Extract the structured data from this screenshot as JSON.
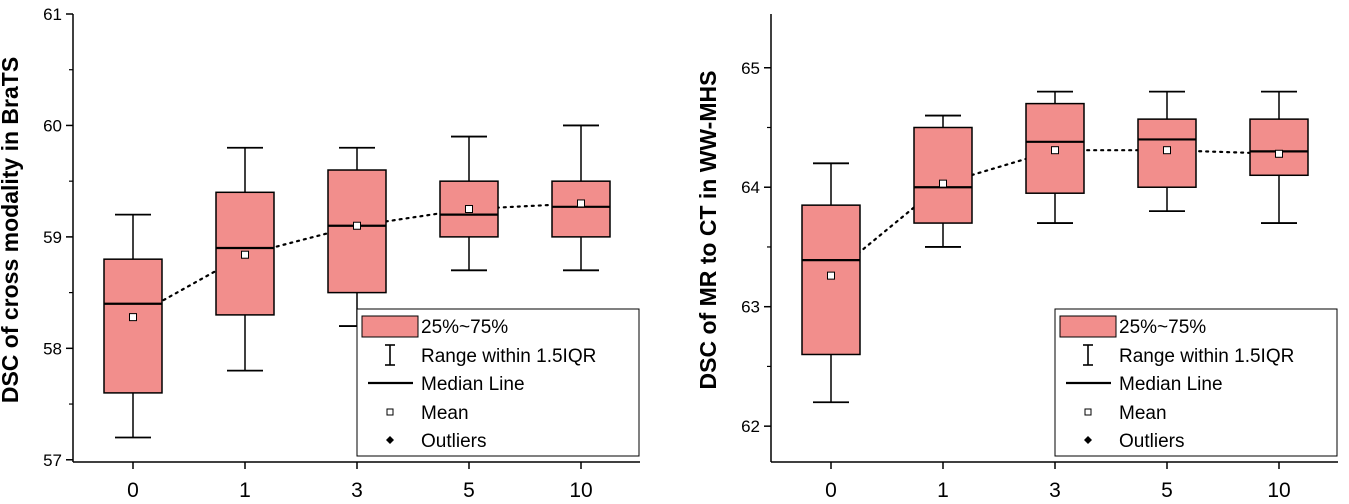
{
  "legend": {
    "box": "25%~75%",
    "whisker": "Range within 1.5IQR",
    "median": "Median Line",
    "mean": "Mean",
    "outliers": "Outliers"
  },
  "colors": {
    "box_fill": "#f28e8c",
    "stroke": "#000000"
  },
  "chart_data": [
    {
      "type": "box",
      "title": "",
      "xlabel": "",
      "ylabel": "DSC of cross modality in BraTS",
      "categories": [
        "0",
        "1",
        "3",
        "5",
        "10"
      ],
      "ylim": [
        56.98,
        61
      ],
      "yticks": [
        57,
        58,
        59,
        60,
        61
      ],
      "boxes": [
        {
          "min": 57.2,
          "q1": 57.6,
          "median": 58.4,
          "q3": 58.8,
          "max": 59.2,
          "mean": 58.28
        },
        {
          "min": 57.8,
          "q1": 58.3,
          "median": 58.9,
          "q3": 59.4,
          "max": 59.8,
          "mean": 58.84
        },
        {
          "min": 58.2,
          "q1": 58.5,
          "median": 59.1,
          "q3": 59.6,
          "max": 59.8,
          "mean": 59.1
        },
        {
          "min": 58.7,
          "q1": 59.0,
          "median": 59.2,
          "q3": 59.5,
          "max": 59.9,
          "mean": 59.25
        },
        {
          "min": 58.7,
          "q1": 59.0,
          "median": 59.27,
          "q3": 59.5,
          "max": 60.0,
          "mean": 59.3
        }
      ],
      "legend_position": "bottom-right"
    },
    {
      "type": "box",
      "title": "",
      "xlabel": "",
      "ylabel": "DSC of MR to CT in WW-MHS",
      "categories": [
        "0",
        "1",
        "3",
        "5",
        "10"
      ],
      "ylim": [
        61.7,
        65.45
      ],
      "yticks": [
        62,
        63,
        64,
        65
      ],
      "boxes": [
        {
          "min": 62.2,
          "q1": 62.6,
          "median": 63.39,
          "q3": 63.85,
          "max": 64.2,
          "mean": 63.26
        },
        {
          "min": 63.5,
          "q1": 63.7,
          "median": 64.0,
          "q3": 64.5,
          "max": 64.6,
          "mean": 64.03
        },
        {
          "min": 63.7,
          "q1": 63.95,
          "median": 64.38,
          "q3": 64.7,
          "max": 64.8,
          "mean": 64.31
        },
        {
          "min": 63.8,
          "q1": 64.0,
          "median": 64.4,
          "q3": 64.57,
          "max": 64.8,
          "mean": 64.31
        },
        {
          "min": 63.7,
          "q1": 64.1,
          "median": 64.3,
          "q3": 64.57,
          "max": 64.8,
          "mean": 64.28
        }
      ],
      "legend_position": "bottom-right"
    }
  ]
}
